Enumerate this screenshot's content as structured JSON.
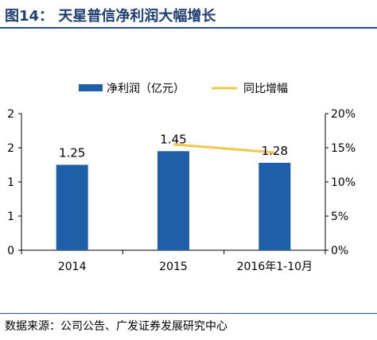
{
  "header": {
    "title": "图14： 天星普信净利润大幅增长"
  },
  "footer": {
    "source": "数据来源：公司公告、广发证券发展研究中心"
  },
  "colors": {
    "bar": "#1f5fa8",
    "line": "#f1c84a",
    "axis": "#000000",
    "title": "#1f3f73"
  },
  "chart_data": {
    "type": "bar",
    "categories": [
      "2014",
      "2015",
      "2016年1-10月"
    ],
    "series": [
      {
        "name": "净利润（亿元）",
        "type": "bar",
        "axis": "left",
        "values": [
          1.25,
          1.45,
          1.28
        ],
        "labels": [
          "1.25",
          "1.45",
          "1.28"
        ]
      },
      {
        "name": "同比增幅",
        "type": "line",
        "axis": "right",
        "values": [
          null,
          15.5,
          14.3
        ]
      }
    ],
    "left_axis": {
      "ylim": [
        0,
        2
      ],
      "ticks": [
        0,
        0.5,
        1,
        1.5,
        2
      ],
      "tick_labels": [
        "0",
        "1",
        "1",
        "2",
        "2"
      ]
    },
    "right_axis": {
      "ylim": [
        0,
        20
      ],
      "ticks": [
        0,
        5,
        10,
        15,
        20
      ],
      "tick_labels": [
        "0%",
        "5%",
        "10%",
        "15%",
        "20%"
      ]
    },
    "legend": "top-center",
    "grid": false
  }
}
